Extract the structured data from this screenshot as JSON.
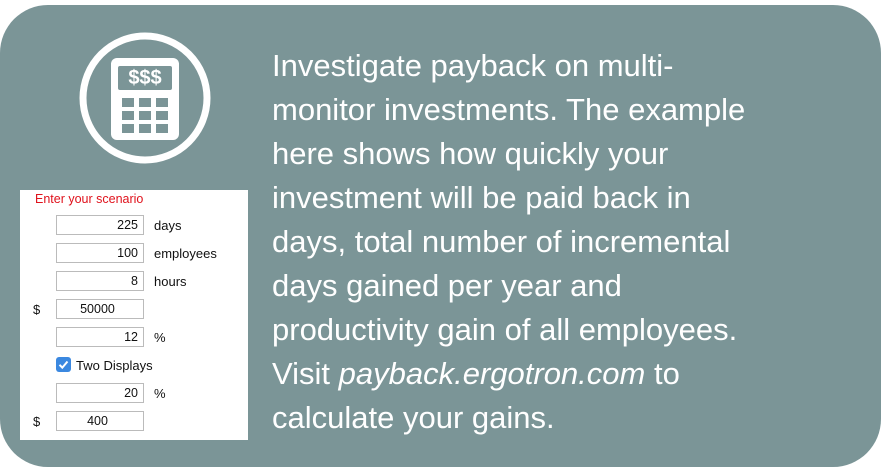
{
  "icon_text": "$$$",
  "form": {
    "heading": "Enter your scenario",
    "rows": [
      {
        "value": 225,
        "unit": "days"
      },
      {
        "value": 100,
        "unit": "employees"
      },
      {
        "value": 8,
        "unit": "hours"
      },
      {
        "prefix": "$",
        "value": 50000
      },
      {
        "value": 12,
        "unit": "%"
      },
      {
        "checkbox": "Two Displays"
      },
      {
        "value": 20,
        "unit": "%"
      },
      {
        "prefix": "$",
        "value": 400
      }
    ]
  },
  "description": {
    "lines": [
      "Investigate payback on multi-",
      "monitor investments. The example",
      "here shows how quickly your",
      "investment will be paid back in",
      "days, total number of incremental",
      "days gained per year and",
      "productivity gain of all employees."
    ],
    "visit_before": "Visit",
    "visit_link": "payback.ergotron.com",
    "visit_after": "to",
    "last_line": "calculate your gains."
  }
}
